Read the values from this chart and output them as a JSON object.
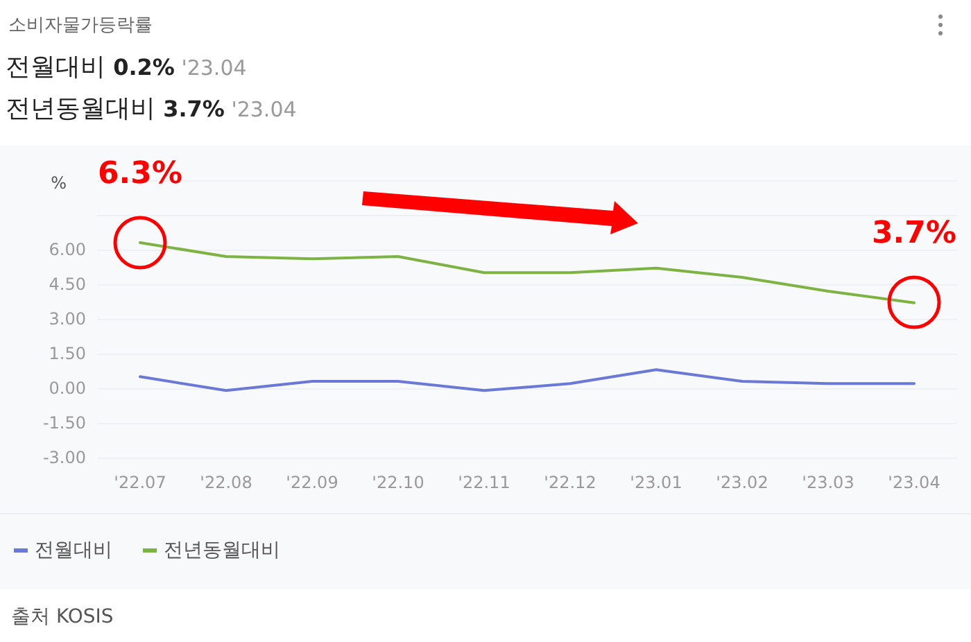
{
  "chart_data": {
    "type": "line",
    "title": "소비자물가등락률",
    "ylabel": "%",
    "annotations": [
      "전월대비 0.2% '23.04",
      "전년동월대비 3.7% '23.04",
      {
        "text": "6.3%",
        "x": "'22.07",
        "y": 6.3
      },
      {
        "text": "3.7%",
        "x": "'23.04",
        "y": 3.7
      },
      "출처 KOSIS"
    ],
    "categories": [
      "'22.07",
      "'22.08",
      "'22.09",
      "'22.10",
      "'22.11",
      "'22.12",
      "'23.01",
      "'23.02",
      "'23.03",
      "'23.04"
    ],
    "series": [
      {
        "name": "전월대비",
        "color": "#6b79d6",
        "values": [
          0.5,
          -0.1,
          0.3,
          0.3,
          -0.1,
          0.2,
          0.8,
          0.3,
          0.2,
          0.2
        ]
      },
      {
        "name": "전년동월대비",
        "color": "#7db343",
        "values": [
          6.3,
          5.7,
          5.6,
          5.7,
          5.0,
          5.0,
          5.2,
          4.8,
          4.2,
          3.7
        ]
      }
    ],
    "ylim": [
      -3,
      9
    ],
    "yticks": [
      {
        "value": -3,
        "label": "-3.00"
      },
      {
        "value": -1.5,
        "label": "-1.50"
      },
      {
        "value": 0,
        "label": "0.00"
      },
      {
        "value": 1.5,
        "label": "1.50"
      },
      {
        "value": 3,
        "label": "3.00"
      },
      {
        "value": 4.5,
        "label": "4.50"
      },
      {
        "value": 6,
        "label": "6.00"
      },
      {
        "value": 7.5,
        "label": null
      },
      {
        "value": 9,
        "label": null
      }
    ],
    "grid": "y",
    "legend": "bottom left",
    "marker": "none",
    "line_style": "solid"
  }
}
